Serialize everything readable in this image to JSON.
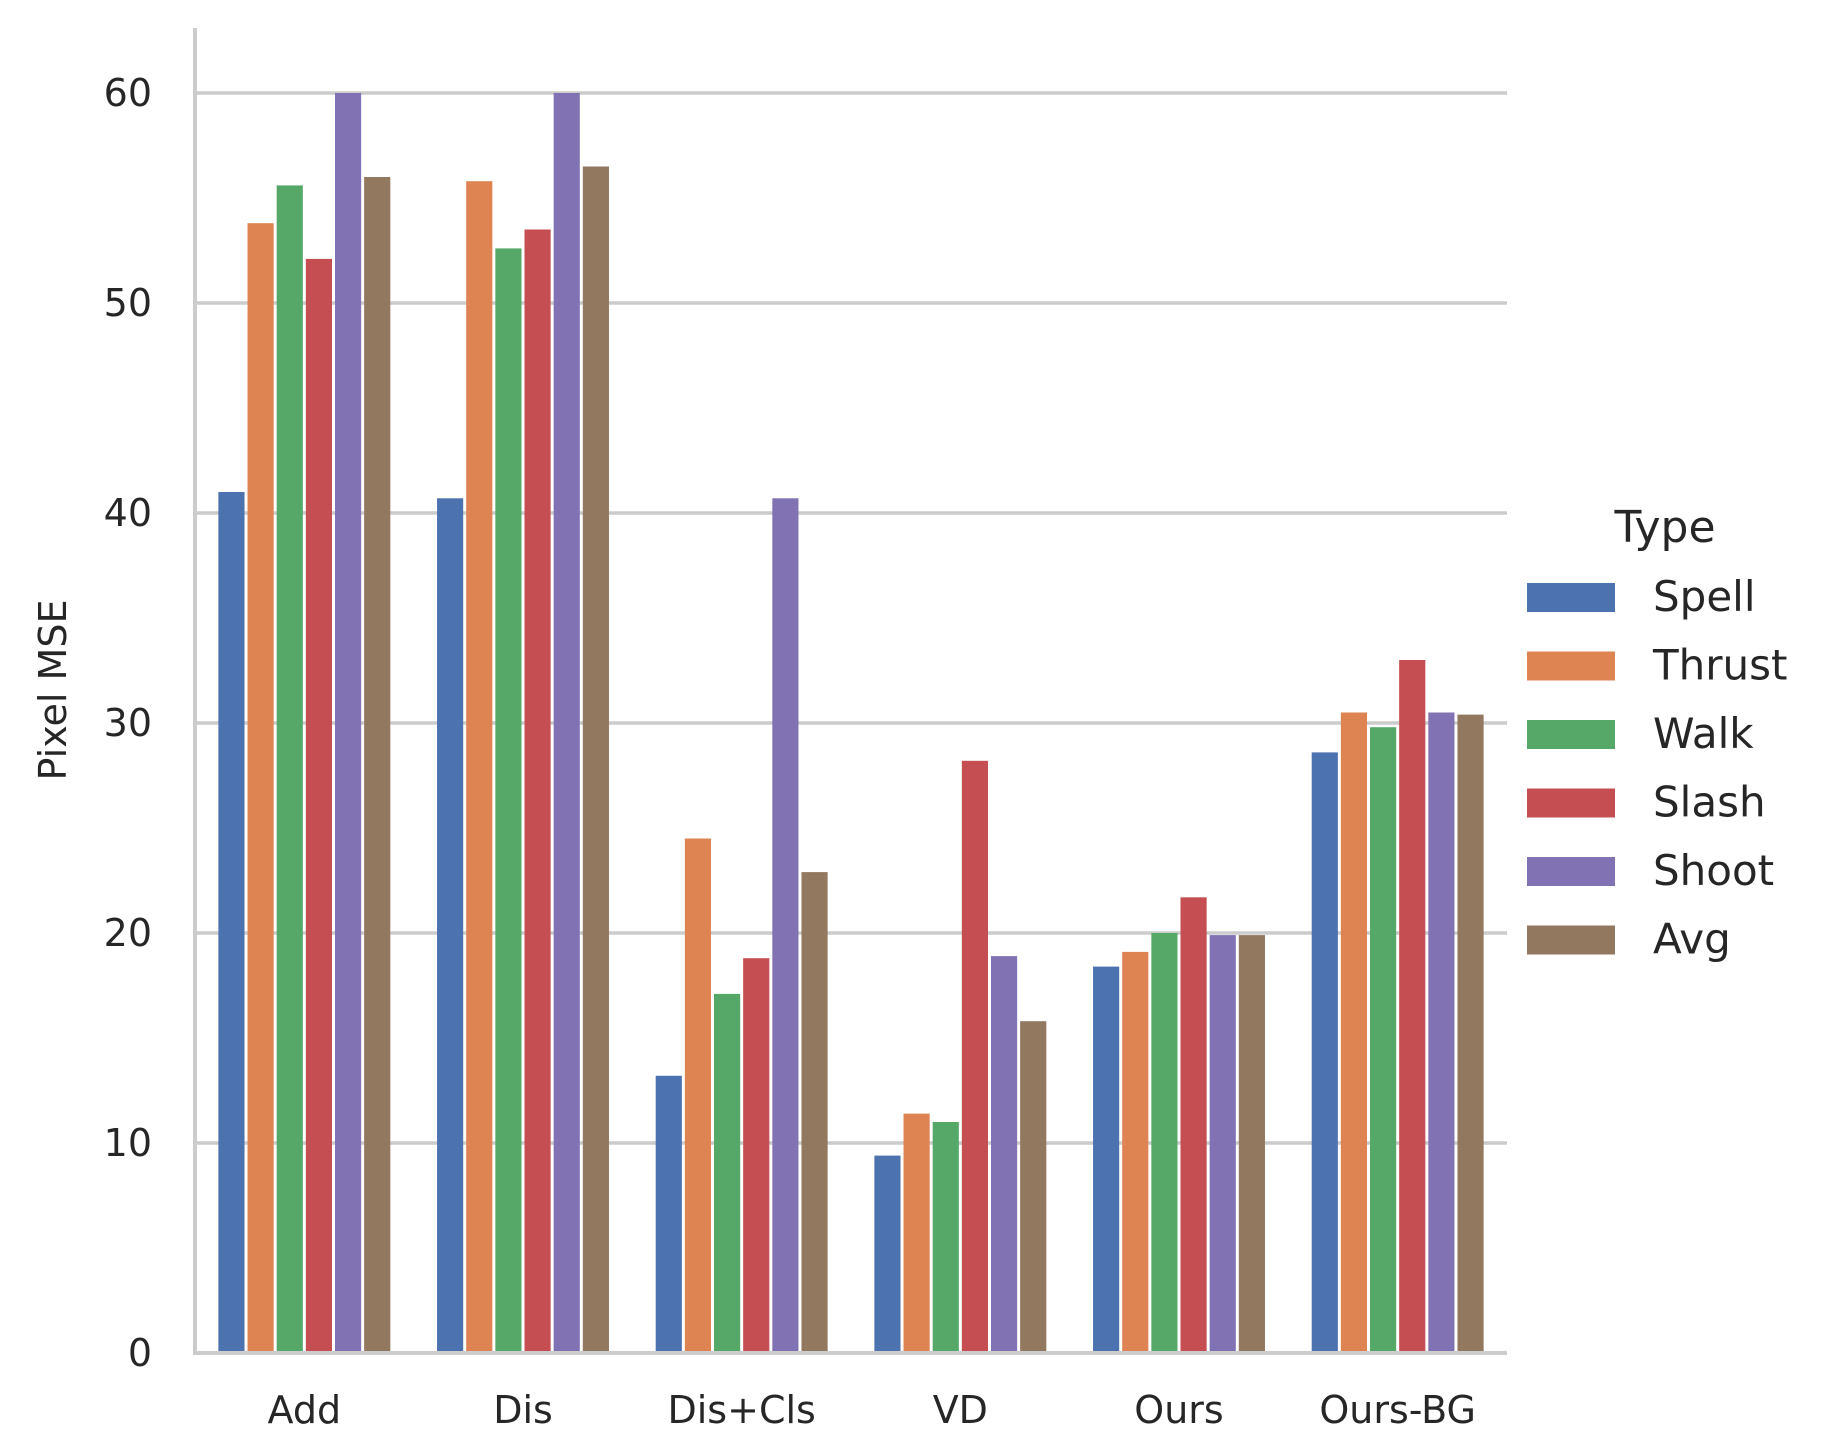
{
  "chart_data": {
    "type": "bar",
    "xlabel": "",
    "ylabel": "Pixel MSE",
    "ylim": [
      0,
      63
    ],
    "yticks": [
      0,
      10,
      20,
      30,
      40,
      50,
      60
    ],
    "grid": true,
    "legend": {
      "title": "Type",
      "placement": "right"
    },
    "categories": [
      "Add",
      "Dis",
      "Dis+Cls",
      "VD",
      "Ours",
      "Ours-BG"
    ],
    "series": [
      {
        "name": "Spell",
        "color": "#4c72b0",
        "values": [
          41.0,
          40.7,
          13.2,
          9.4,
          18.4,
          28.6
        ]
      },
      {
        "name": "Thrust",
        "color": "#dd8452",
        "values": [
          53.8,
          55.8,
          24.5,
          11.4,
          19.1,
          30.5
        ]
      },
      {
        "name": "Walk",
        "color": "#55a868",
        "values": [
          55.6,
          52.6,
          17.1,
          11.0,
          20.0,
          29.8
        ]
      },
      {
        "name": "Slash",
        "color": "#c44e52",
        "values": [
          52.1,
          53.5,
          18.8,
          28.2,
          21.7,
          33.0
        ]
      },
      {
        "name": "Shoot",
        "color": "#8172b3",
        "values": [
          60.0,
          60.0,
          40.7,
          18.9,
          19.9,
          30.5
        ]
      },
      {
        "name": "Avg",
        "color": "#937860",
        "values": [
          56.0,
          56.5,
          22.9,
          15.8,
          19.9,
          30.4
        ]
      }
    ]
  }
}
